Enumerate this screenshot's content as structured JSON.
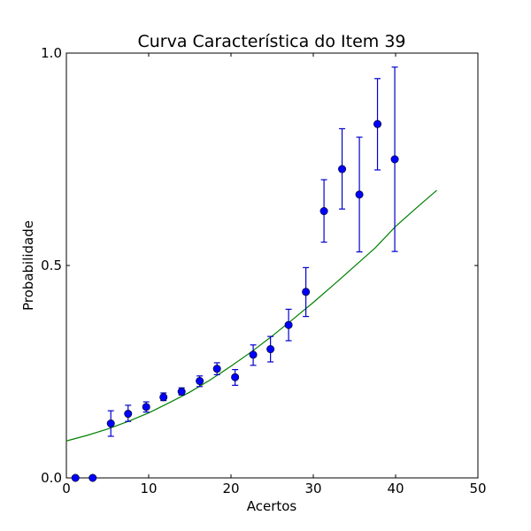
{
  "chart_data": {
    "type": "scatter",
    "title": "Curva Característica do Item 39",
    "xlabel": "Acertos",
    "ylabel": "Probabilidade",
    "xlim": [
      0,
      50
    ],
    "ylim": [
      0.0,
      1.0
    ],
    "xticks": [
      0,
      10,
      20,
      30,
      40,
      50
    ],
    "xtick_labels": [
      "0",
      "10",
      "20",
      "30",
      "40",
      "50"
    ],
    "yticks": [
      0.0,
      0.5,
      1.0
    ],
    "ytick_labels": [
      "0.0",
      "0.5",
      "1.0"
    ],
    "grid": false,
    "series": [
      {
        "kind": "points-with-errorbars",
        "color": "#0000ff",
        "errorbar_color": "#0000cc",
        "points": [
          {
            "x": 1.1,
            "y": 0.0,
            "lo": 0.0,
            "hi": 0.0
          },
          {
            "x": 3.2,
            "y": 0.0,
            "lo": 0.0,
            "hi": 0.0
          },
          {
            "x": 5.4,
            "y": 0.128,
            "lo": 0.098,
            "hi": 0.158
          },
          {
            "x": 7.5,
            "y": 0.151,
            "lo": 0.133,
            "hi": 0.171
          },
          {
            "x": 9.7,
            "y": 0.167,
            "lo": 0.155,
            "hi": 0.179
          },
          {
            "x": 11.8,
            "y": 0.19,
            "lo": 0.182,
            "hi": 0.2
          },
          {
            "x": 14.0,
            "y": 0.203,
            "lo": 0.195,
            "hi": 0.212
          },
          {
            "x": 16.2,
            "y": 0.228,
            "lo": 0.215,
            "hi": 0.24
          },
          {
            "x": 18.3,
            "y": 0.257,
            "lo": 0.243,
            "hi": 0.271
          },
          {
            "x": 20.5,
            "y": 0.237,
            "lo": 0.218,
            "hi": 0.255
          },
          {
            "x": 22.7,
            "y": 0.29,
            "lo": 0.265,
            "hi": 0.313
          },
          {
            "x": 24.8,
            "y": 0.303,
            "lo": 0.273,
            "hi": 0.333
          },
          {
            "x": 27.0,
            "y": 0.36,
            "lo": 0.323,
            "hi": 0.397
          },
          {
            "x": 29.1,
            "y": 0.438,
            "lo": 0.38,
            "hi": 0.495
          },
          {
            "x": 31.3,
            "y": 0.628,
            "lo": 0.555,
            "hi": 0.702
          },
          {
            "x": 33.5,
            "y": 0.727,
            "lo": 0.633,
            "hi": 0.822
          },
          {
            "x": 35.6,
            "y": 0.667,
            "lo": 0.532,
            "hi": 0.802
          },
          {
            "x": 37.8,
            "y": 0.833,
            "lo": 0.725,
            "hi": 0.94
          },
          {
            "x": 39.9,
            "y": 0.75,
            "lo": 0.533,
            "hi": 0.967
          }
        ]
      },
      {
        "kind": "curve",
        "color": "#008000",
        "x": [
          0,
          2.5,
          5,
          7.5,
          10,
          12.5,
          15,
          17.5,
          20,
          22.5,
          25,
          27.5,
          30,
          32.5,
          35,
          37.5,
          40,
          42.5,
          45
        ],
        "y": [
          0.087,
          0.1,
          0.115,
          0.133,
          0.153,
          0.177,
          0.202,
          0.231,
          0.263,
          0.297,
          0.334,
          0.373,
          0.413,
          0.455,
          0.498,
          0.541,
          0.592,
          0.635,
          0.677
        ]
      }
    ]
  }
}
